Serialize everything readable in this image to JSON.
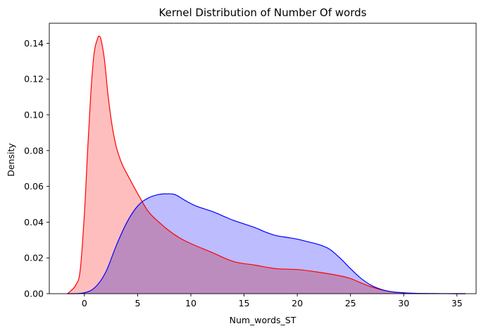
{
  "chart_data": {
    "type": "area",
    "title": "Kernel Distribution of Number Of words",
    "xlabel": "Num_words_ST",
    "ylabel": "Density",
    "xlim": [
      -3.3,
      36.8
    ],
    "ylim": [
      0,
      0.1512
    ],
    "x_ticks": [
      0,
      5,
      10,
      15,
      20,
      25,
      30,
      35
    ],
    "y_ticks": [
      0.0,
      0.02,
      0.04,
      0.06,
      0.08,
      0.1,
      0.12,
      0.14
    ],
    "x_tick_labels": [
      "0",
      "5",
      "10",
      "15",
      "20",
      "25",
      "30",
      "35"
    ],
    "y_tick_labels": [
      "0.00",
      "0.02",
      "0.04",
      "0.06",
      "0.08",
      "0.10",
      "0.12",
      "0.14"
    ],
    "grid": false,
    "legend": "none",
    "series": [
      {
        "color": "#ff0000",
        "fill_color": "#ffbaba",
        "x": [
          -1.6,
          -1.2,
          -0.8,
          -0.4,
          0,
          0.3,
          0.6,
          0.9,
          1.2,
          1.4,
          1.6,
          1.9,
          2.2,
          2.6,
          3,
          3.5,
          4,
          5,
          6,
          7,
          8,
          9,
          10,
          12,
          14,
          16,
          18,
          20,
          22,
          24,
          25,
          26,
          27,
          28,
          29,
          30,
          31,
          32,
          33,
          34,
          35,
          35.8
        ],
        "y": [
          0.0,
          0.002,
          0.005,
          0.013,
          0.045,
          0.08,
          0.112,
          0.134,
          0.142,
          0.144,
          0.141,
          0.13,
          0.112,
          0.094,
          0.082,
          0.073,
          0.067,
          0.056,
          0.046,
          0.04,
          0.035,
          0.031,
          0.028,
          0.023,
          0.018,
          0.016,
          0.014,
          0.0135,
          0.012,
          0.01,
          0.0085,
          0.006,
          0.0037,
          0.002,
          0.0009,
          0.0004,
          0.0002,
          0.0001,
          5e-05,
          2e-05,
          1e-05,
          0.0
        ]
      },
      {
        "color": "#0000ff",
        "fill_color": "#b8b8ff",
        "x": [
          -1.6,
          -1,
          0,
          1,
          2,
          3,
          4,
          5,
          6,
          7,
          7.7,
          8.5,
          9.5,
          10.5,
          12,
          13,
          14,
          15,
          16,
          17,
          18,
          19,
          20,
          21,
          22,
          23,
          24,
          25,
          26,
          27,
          28,
          29,
          30,
          31,
          32,
          33,
          34,
          35,
          35.8
        ],
        "y": [
          0.0,
          0.0,
          0.0005,
          0.0035,
          0.012,
          0.027,
          0.04,
          0.049,
          0.0535,
          0.0555,
          0.0558,
          0.0554,
          0.052,
          0.049,
          0.046,
          0.0435,
          0.041,
          0.039,
          0.037,
          0.0345,
          0.0325,
          0.0315,
          0.0305,
          0.029,
          0.0275,
          0.025,
          0.02,
          0.014,
          0.0085,
          0.0045,
          0.0022,
          0.001,
          0.0005,
          0.0002,
          0.0001,
          5e-05,
          2e-05,
          1e-05,
          0.0
        ]
      }
    ]
  }
}
